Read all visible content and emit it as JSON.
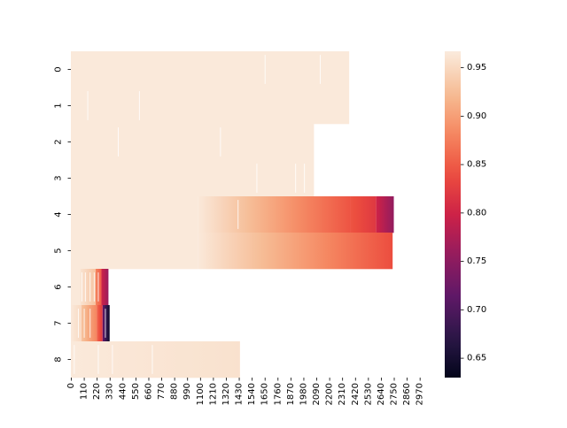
{
  "chart_data": {
    "type": "heatmap",
    "title": "",
    "xlabel": "",
    "ylabel": "",
    "y_categories": [
      "0",
      "1",
      "2",
      "3",
      "4",
      "5",
      "6",
      "7",
      "8"
    ],
    "x_ticks": [
      0,
      110,
      220,
      330,
      440,
      550,
      660,
      770,
      880,
      990,
      1100,
      1210,
      1320,
      1430,
      1540,
      1650,
      1760,
      1870,
      1980,
      2090,
      2200,
      2310,
      2420,
      2530,
      2640,
      2750,
      2860,
      2970
    ],
    "x_tick_labels": [
      "0",
      "110",
      "220",
      "330",
      "440",
      "550",
      "660",
      "770",
      "880",
      "990",
      "1100",
      "1210",
      "1320",
      "1430",
      "1540",
      "1650",
      "1760",
      "1870",
      "1980",
      "2090",
      "2200",
      "2310",
      "2420",
      "2530",
      "2640",
      "2750",
      "2860",
      "2970"
    ],
    "xlim": [
      0,
      2980
    ],
    "colorbar": {
      "min": 0.63,
      "max": 0.967,
      "ticks": [
        0.65,
        0.7,
        0.75,
        0.8,
        0.85,
        0.9,
        0.95
      ],
      "tick_labels": [
        "0.65",
        "0.70",
        "0.75",
        "0.80",
        "0.85",
        "0.90",
        "0.95"
      ],
      "colormap": "rocket"
    },
    "rows": [
      {
        "row": "0",
        "length": 2370,
        "segments": [
          {
            "x0": 0,
            "x1": 2370,
            "v0": 0.965,
            "v1": 0.965
          }
        ]
      },
      {
        "row": "1",
        "length": 2370,
        "segments": [
          {
            "x0": 0,
            "x1": 2370,
            "v0": 0.965,
            "v1": 0.965
          }
        ]
      },
      {
        "row": "2",
        "length": 2070,
        "segments": [
          {
            "x0": 0,
            "x1": 2070,
            "v0": 0.965,
            "v1": 0.965
          }
        ]
      },
      {
        "row": "3",
        "length": 2070,
        "segments": [
          {
            "x0": 0,
            "x1": 2070,
            "v0": 0.965,
            "v1": 0.965
          }
        ]
      },
      {
        "row": "4",
        "length": 2750,
        "segments": [
          {
            "x0": 0,
            "x1": 1080,
            "v0": 0.965,
            "v1": 0.965
          },
          {
            "x0": 1080,
            "x1": 2380,
            "v0": 0.965,
            "v1": 0.845
          },
          {
            "x0": 2380,
            "x1": 2600,
            "v0": 0.845,
            "v1": 0.82
          },
          {
            "x0": 2600,
            "x1": 2750,
            "v0": 0.8,
            "v1": 0.755
          }
        ]
      },
      {
        "row": "5",
        "length": 2740,
        "segments": [
          {
            "x0": 0,
            "x1": 1080,
            "v0": 0.965,
            "v1": 0.965
          },
          {
            "x0": 1080,
            "x1": 2740,
            "v0": 0.965,
            "v1": 0.84
          }
        ]
      },
      {
        "row": "6",
        "length": 320,
        "segments": [
          {
            "x0": 0,
            "x1": 80,
            "v0": 0.965,
            "v1": 0.965
          },
          {
            "x0": 80,
            "x1": 210,
            "v0": 0.96,
            "v1": 0.93
          },
          {
            "x0": 210,
            "x1": 260,
            "v0": 0.88,
            "v1": 0.85
          },
          {
            "x0": 260,
            "x1": 320,
            "v0": 0.8,
            "v1": 0.76
          }
        ]
      },
      {
        "row": "7",
        "length": 330,
        "segments": [
          {
            "x0": 0,
            "x1": 90,
            "v0": 0.965,
            "v1": 0.95
          },
          {
            "x0": 90,
            "x1": 220,
            "v0": 0.93,
            "v1": 0.88
          },
          {
            "x0": 220,
            "x1": 270,
            "v0": 0.86,
            "v1": 0.82
          },
          {
            "x0": 270,
            "x1": 330,
            "v0": 0.72,
            "v1": 0.64
          }
        ]
      },
      {
        "row": "8",
        "length": 1440,
        "segments": [
          {
            "x0": 0,
            "x1": 1440,
            "v0": 0.965,
            "v1": 0.958
          }
        ]
      }
    ],
    "light_streaks": [
      {
        "row": "0",
        "x": [
          1650,
          2120
        ]
      },
      {
        "row": "1",
        "x": [
          140,
          580
        ]
      },
      {
        "row": "2",
        "x": [
          400,
          1270
        ]
      },
      {
        "row": "3",
        "x": [
          1580,
          1910,
          1985
        ]
      },
      {
        "row": "4",
        "x": [
          1420
        ]
      },
      {
        "row": "6",
        "x": [
          90,
          120,
          160,
          195,
          230
        ]
      },
      {
        "row": "7",
        "x": [
          60,
          110,
          160,
          290
        ]
      },
      {
        "row": "8",
        "x": [
          25,
          230,
          350,
          690
        ]
      }
    ],
    "grid": false,
    "legend": "colorbar-right"
  }
}
